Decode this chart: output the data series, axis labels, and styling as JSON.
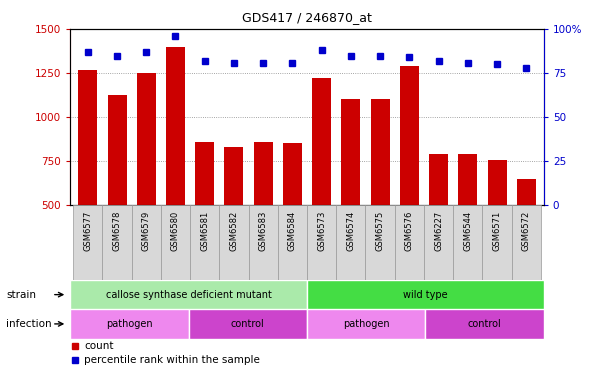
{
  "title": "GDS417 / 246870_at",
  "samples": [
    "GSM6577",
    "GSM6578",
    "GSM6579",
    "GSM6580",
    "GSM6581",
    "GSM6582",
    "GSM6583",
    "GSM6584",
    "GSM6573",
    "GSM6574",
    "GSM6575",
    "GSM6576",
    "GSM6227",
    "GSM6544",
    "GSM6571",
    "GSM6572"
  ],
  "counts": [
    1270,
    1125,
    1250,
    1400,
    860,
    830,
    860,
    850,
    1220,
    1105,
    1105,
    1290,
    790,
    790,
    755,
    650
  ],
  "percentiles": [
    87,
    85,
    87,
    96,
    82,
    81,
    81,
    81,
    88,
    85,
    85,
    84,
    82,
    81,
    80,
    78
  ],
  "ylim_left": [
    500,
    1500
  ],
  "ylim_right": [
    0,
    100
  ],
  "yticks_left": [
    500,
    750,
    1000,
    1250,
    1500
  ],
  "yticks_right": [
    0,
    25,
    50,
    75,
    100
  ],
  "bar_color": "#cc0000",
  "dot_color": "#0000cc",
  "strain_groups": [
    {
      "label": "callose synthase deficient mutant",
      "start": 0,
      "end": 8,
      "color": "#aaeaaa"
    },
    {
      "label": "wild type",
      "start": 8,
      "end": 16,
      "color": "#44dd44"
    }
  ],
  "infection_groups": [
    {
      "label": "pathogen",
      "start": 0,
      "end": 4,
      "color": "#ee88ee"
    },
    {
      "label": "control",
      "start": 4,
      "end": 8,
      "color": "#cc44cc"
    },
    {
      "label": "pathogen",
      "start": 8,
      "end": 12,
      "color": "#ee88ee"
    },
    {
      "label": "control",
      "start": 12,
      "end": 16,
      "color": "#cc44cc"
    }
  ],
  "legend_count_color": "#cc0000",
  "legend_dot_color": "#0000cc",
  "background_color": "#ffffff",
  "grid_color": "#888888",
  "xlabel_bg": "#d8d8d8",
  "xlabel_border": "#999999"
}
